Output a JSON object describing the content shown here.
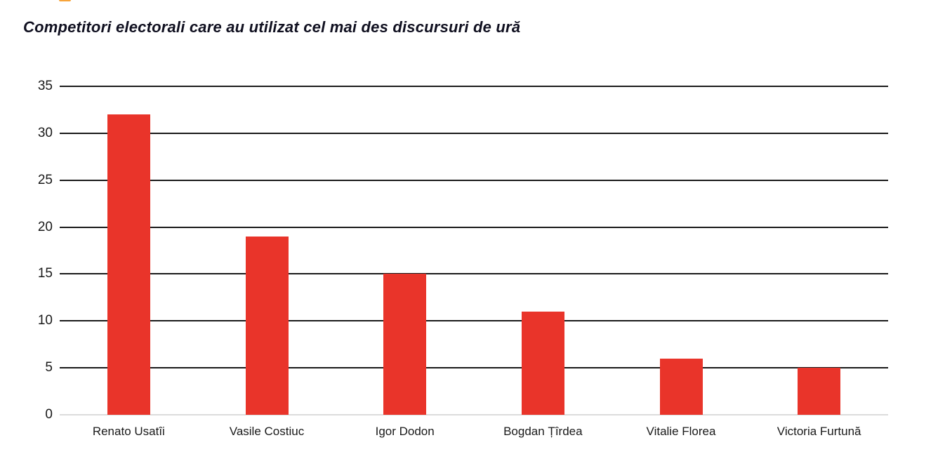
{
  "title": "Competitori electorali care au utilizat cel mai des discursuri de ură",
  "top_accent_color": "#F7A43B",
  "chart_data": {
    "type": "bar",
    "title": "Competitori electorali care au utilizat cel mai des discursuri de ură",
    "categories": [
      "Renato Usatîi",
      "Vasile Costiuc",
      "Igor Dodon",
      "Bogdan Țîrdea",
      "Vitalie Florea",
      "Victoria Furtună"
    ],
    "values": [
      32,
      19,
      15,
      11,
      6,
      5
    ],
    "y_ticks": [
      0,
      5,
      10,
      15,
      20,
      25,
      30,
      35
    ],
    "ylim": [
      0,
      35
    ],
    "xlabel": "",
    "ylabel": "",
    "grid": true,
    "legend": false,
    "bar_color": "#E9342A",
    "gridline_color": "#1a1a1a",
    "baseline_color": "#dcdcdc",
    "label_color": "#1a1a1a"
  }
}
